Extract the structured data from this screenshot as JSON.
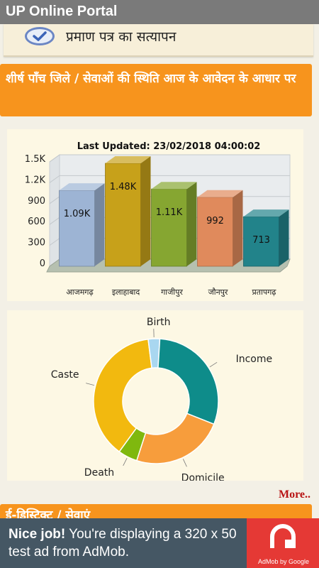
{
  "app": {
    "title": "UP Online Portal"
  },
  "verify": {
    "label": "प्रमाण पत्र का सत्यापन"
  },
  "section": {
    "title": "शीर्ष पाँच जिले / सेवाओं की स्थिति आज के आवेदन के आधार पर"
  },
  "chart_data": [
    {
      "type": "bar",
      "title": "Last Updated: 23/02/2018 04:00:02",
      "categories": [
        "आजमगढ़",
        "इलाहाबाद",
        "गाजीपुर",
        "जौनपुर",
        "प्रतापगढ़"
      ],
      "values": [
        1090,
        1480,
        1110,
        992,
        713
      ],
      "data_labels": [
        "1.09K",
        "1.48K",
        "1.11K",
        "992",
        "713"
      ],
      "ylim": [
        0,
        1500
      ],
      "yticks": [
        "0",
        "300",
        "600",
        "900",
        "1.2K",
        "1.5K"
      ],
      "colors": [
        "#9db4d4",
        "#c7a11a",
        "#86a631",
        "#e08a5c",
        "#22838a"
      ],
      "grid": true
    },
    {
      "type": "pie",
      "style": "donut",
      "labels": [
        "Caste",
        "Birth",
        "Income",
        "Domicile",
        "Death"
      ],
      "values": [
        38,
        3,
        30,
        24,
        5
      ],
      "colors": [
        "#f2b90f",
        "#a9d7f0",
        "#0e8c8a",
        "#f79d3c",
        "#7fb80e"
      ]
    }
  ],
  "more": {
    "label": "More.."
  },
  "next_section": {
    "title": "ई-डिस्ट्रिक्ट / सेवाएं"
  },
  "ad": {
    "bold": "Nice job!",
    "text": " You're displaying a 320 x 50 test ad from AdMob.",
    "caption": "AdMob by Google"
  }
}
